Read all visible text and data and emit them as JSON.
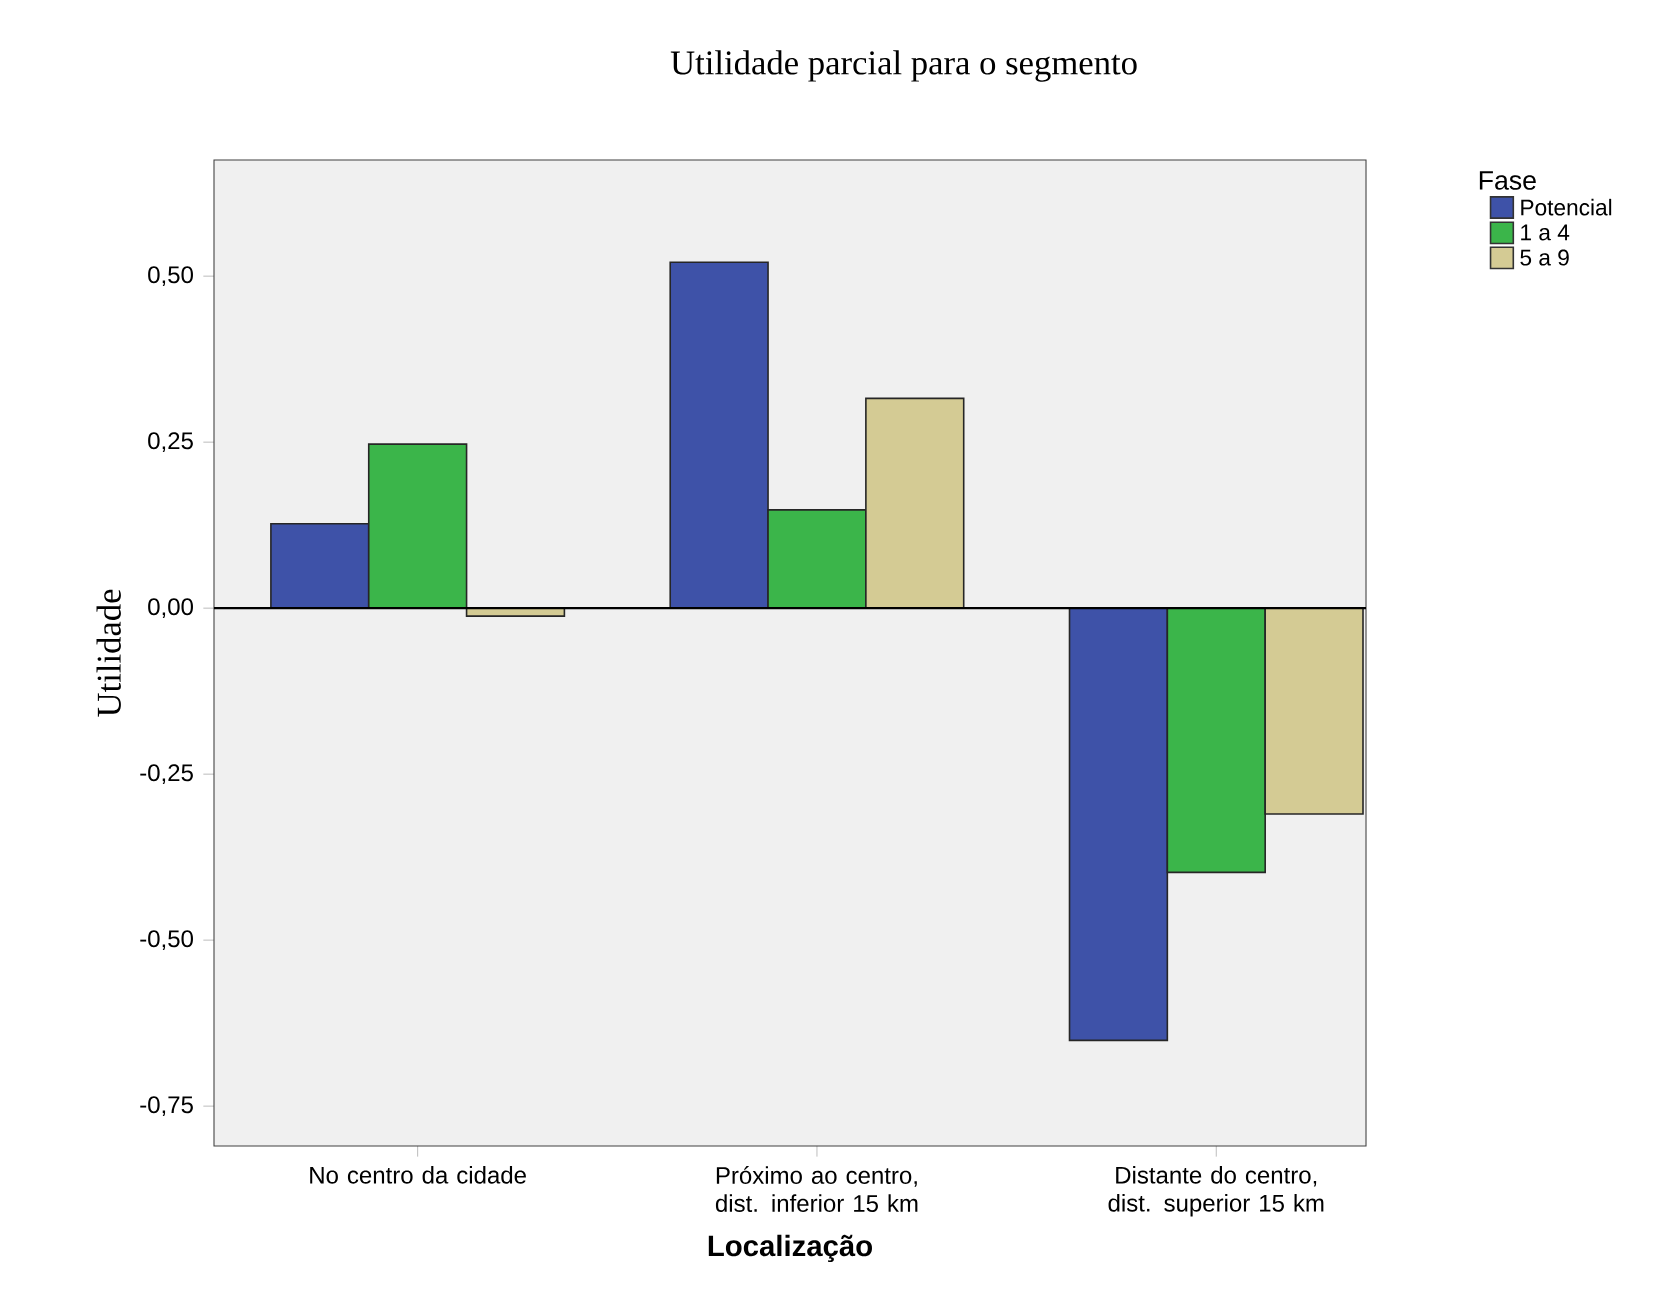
{
  "chart_data": {
    "type": "bar",
    "title": "Utilidade parcial para o segmento",
    "xlabel": "Localização",
    "ylabel": "Utilidade",
    "legend_title": "Fase",
    "categories": [
      "No centro da cidade",
      "Próximo ao centro, dist. inferior 15 km",
      "Distante do centro, dist. superior 15 km"
    ],
    "series": [
      {
        "name": "Potencial",
        "color": "#3e52a8",
        "values": [
          0.127,
          0.521,
          -0.651
        ]
      },
      {
        "name": "1 a 4",
        "color": "#3bb54a",
        "values": [
          0.247,
          0.148,
          -0.398
        ]
      },
      {
        "name": "5 a 9",
        "color": "#d4cb94",
        "values": [
          -0.012,
          0.316,
          -0.31
        ]
      }
    ],
    "ylim": [
      -0.81,
      0.675
    ],
    "yticks": [
      {
        "value": -0.75,
        "label": "-0,75"
      },
      {
        "value": -0.5,
        "label": "-0,50"
      },
      {
        "value": -0.25,
        "label": "-0,25"
      },
      {
        "value": 0,
        "label": "0,00"
      },
      {
        "value": 0.25,
        "label": "0,25"
      },
      {
        "value": 0.5,
        "label": "0,50"
      }
    ],
    "ref_lines": [
      {
        "axis": "y",
        "value": 0,
        "color": "#000000"
      }
    ],
    "grid": false,
    "legend": "top right"
  }
}
